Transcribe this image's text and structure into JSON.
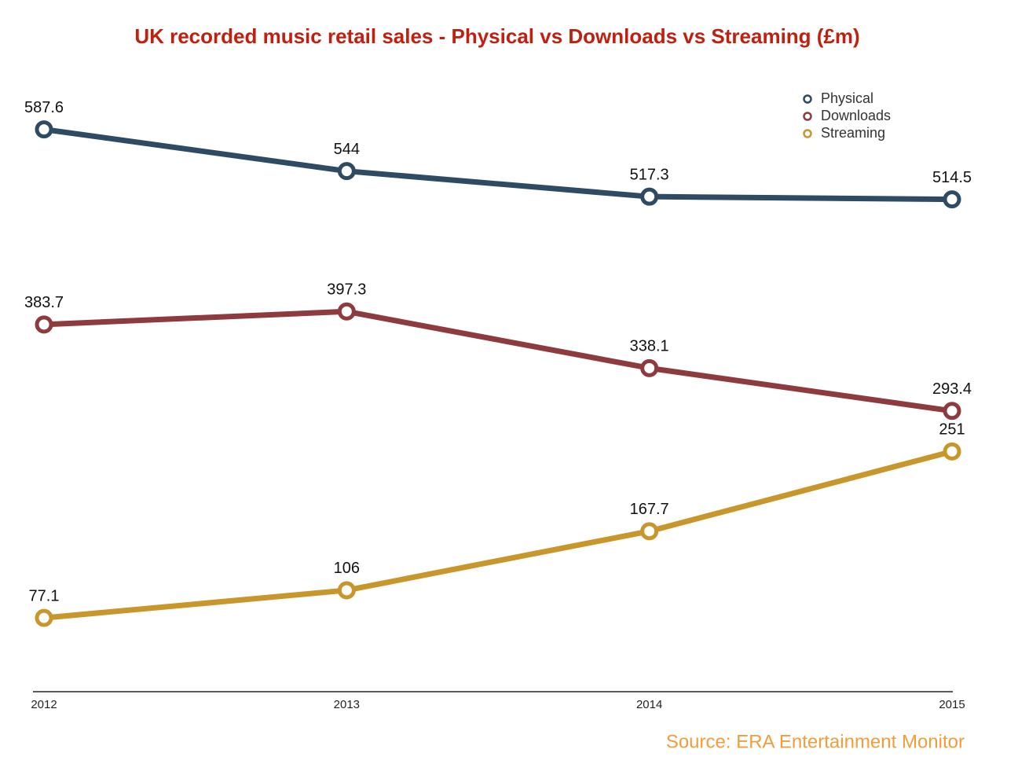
{
  "chart_data": {
    "type": "line",
    "title": "UK recorded music retail sales - Physical vs Downloads vs Streaming (£m)",
    "source": "Source: ERA Entertainment Monitor",
    "categories": [
      "2012",
      "2013",
      "2014",
      "2015"
    ],
    "series": [
      {
        "name": "Physical",
        "color": "#2f4b64",
        "values": [
          587.6,
          544,
          517.3,
          514.5
        ]
      },
      {
        "name": "Downloads",
        "color": "#8e3b3f",
        "values": [
          383.7,
          397.3,
          338.1,
          293.4
        ]
      },
      {
        "name": "Streaming",
        "color": "#c8962a",
        "values": [
          77.1,
          106,
          167.7,
          251
        ]
      }
    ],
    "ylim": [
      0,
      600
    ],
    "grid": false,
    "legend": "upper right",
    "data_labels": true
  }
}
